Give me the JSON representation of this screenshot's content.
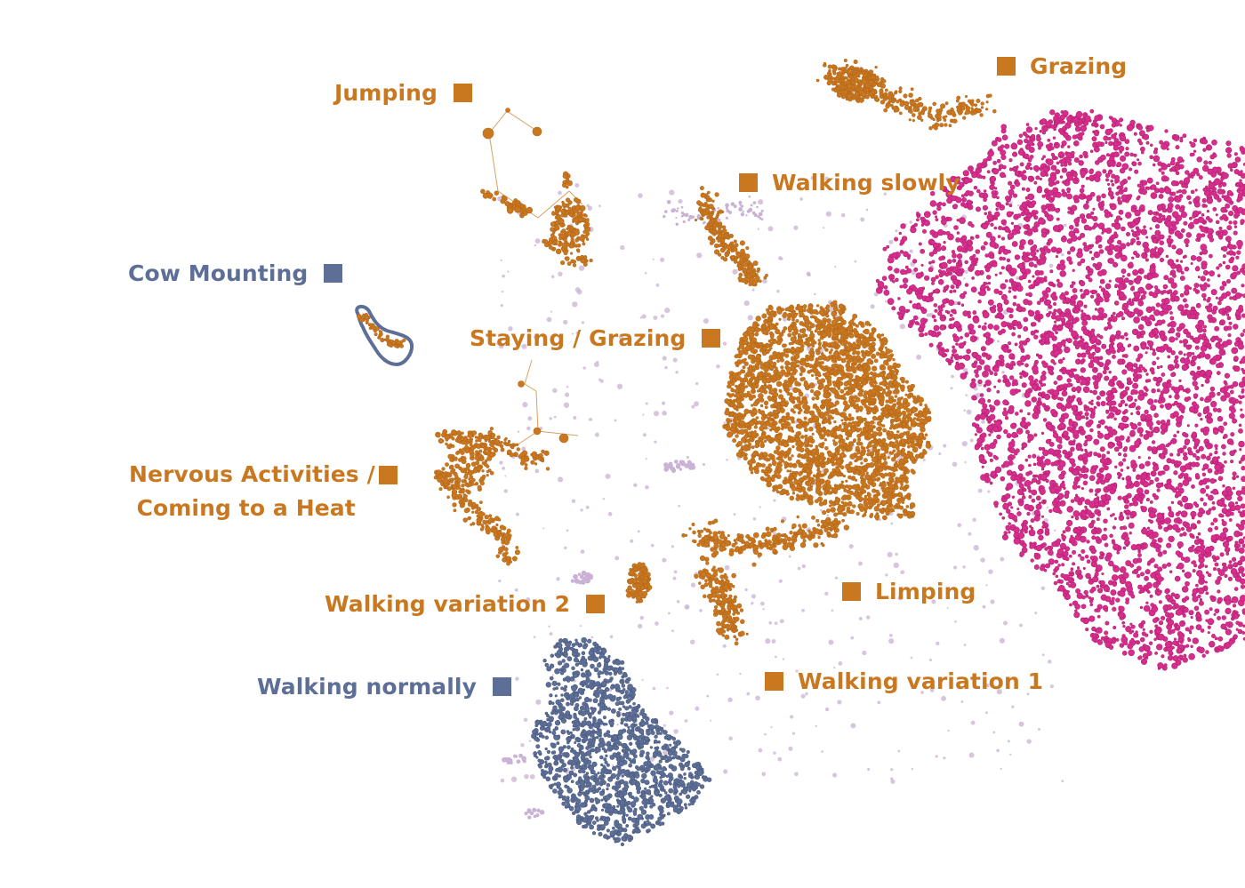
{
  "colors": {
    "orange": "#C9781F",
    "slate": "#5E6F97",
    "magenta": "#D62E8E",
    "lavender": "#C9B2D3"
  },
  "labels": {
    "grazing": "Grazing",
    "jumping": "Jumping",
    "walking_slowly": "Walking slowly",
    "cow_mounting": "Cow Mounting",
    "staying_grazing": "Staying / Grazing",
    "nervous_line1": "Nervous Activities /",
    "nervous_line2": "Coming to a Heat",
    "walking_variation_2": "Walking variation 2",
    "limping": "Limping",
    "walking_normally": "Walking normally",
    "walking_variation_1": "Walking variation 1"
  }
}
